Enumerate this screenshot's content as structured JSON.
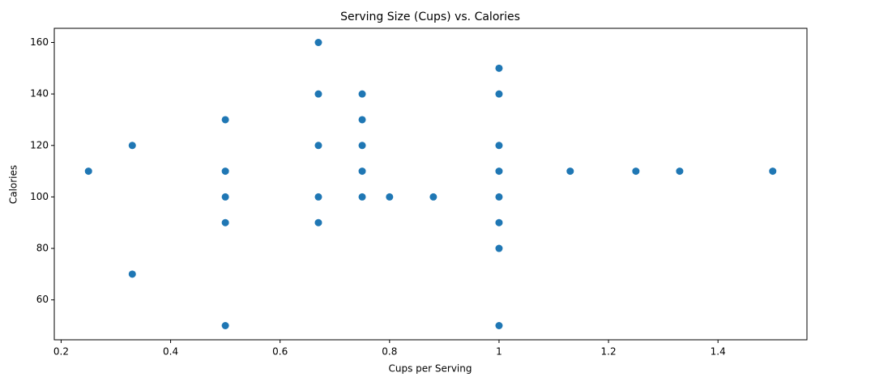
{
  "chart_data": {
    "type": "scatter",
    "title": "Serving Size (Cups) vs. Calories",
    "x_label": "Cups per Serving",
    "y_label": "Calories",
    "x": [
      0.25,
      0.33,
      0.33,
      0.5,
      0.5,
      0.5,
      0.5,
      0.5,
      0.67,
      0.67,
      0.67,
      0.67,
      0.67,
      0.75,
      0.75,
      0.75,
      0.75,
      0.75,
      0.8,
      0.88,
      1,
      1,
      1,
      1,
      1,
      1,
      1,
      1,
      1.13,
      1.25,
      1.33,
      1.5
    ],
    "values": [
      110,
      120,
      70,
      130,
      110,
      100,
      90,
      50,
      160,
      140,
      120,
      100,
      90,
      140,
      130,
      120,
      110,
      100,
      100,
      100,
      150,
      140,
      120,
      110,
      100,
      90,
      80,
      50,
      110,
      110,
      110,
      110
    ],
    "color": "#1f77b4",
    "xlim": [
      0.1875,
      1.5625
    ],
    "xticks": [
      0.2,
      0.4,
      0.6,
      0.8,
      1.0,
      1.2,
      1.4
    ],
    "ylim": [
      44.5,
      165.5
    ],
    "yticks": [
      60,
      80,
      100,
      120,
      140,
      160
    ]
  }
}
